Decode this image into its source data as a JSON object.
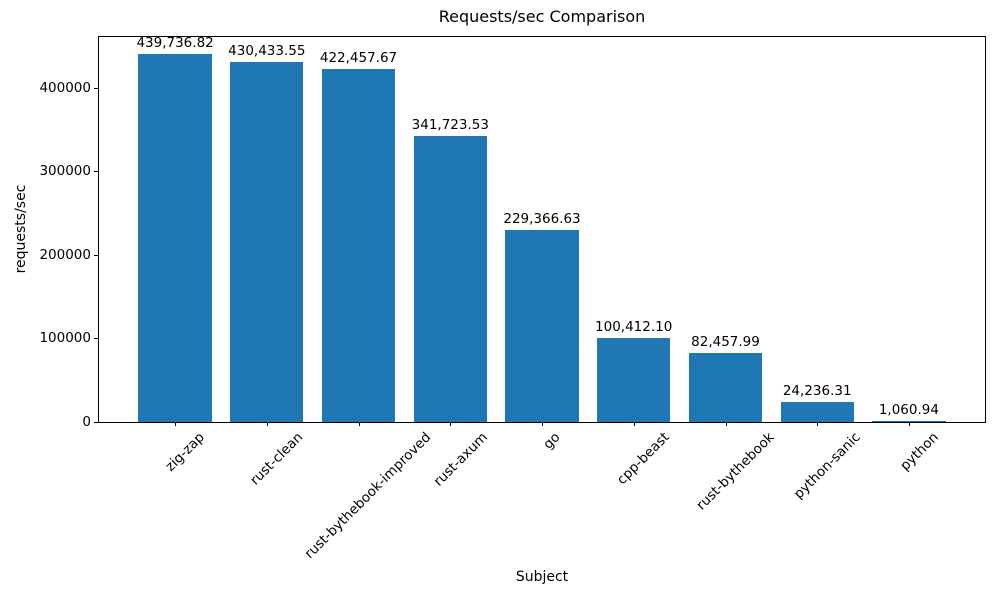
{
  "chart_data": {
    "type": "bar",
    "title": "Requests/sec Comparison",
    "xlabel": "Subject",
    "ylabel": "requests/sec",
    "categories": [
      "zig-zap",
      "rust-clean",
      "rust-bythebook-improved",
      "rust-axum",
      "go",
      "cpp-beast",
      "rust-bythebook",
      "python-sanic",
      "python"
    ],
    "values": [
      439736.82,
      430433.55,
      422457.67,
      341723.53,
      229366.63,
      100412.1,
      82457.99,
      24236.31,
      1060.94
    ],
    "value_labels": [
      "439,736.82",
      "430,433.55",
      "422,457.67",
      "341,723.53",
      "229,366.63",
      "100,412.10",
      "82,457.99",
      "24,236.31",
      "1,060.94"
    ],
    "ylim": [
      0,
      461723.66
    ],
    "yticks": [
      0,
      100000,
      200000,
      300000,
      400000
    ],
    "ytick_labels": [
      "0",
      "100000",
      "200000",
      "300000",
      "400000"
    ],
    "bar_color": "#1f77b4",
    "spine_color": "#000000",
    "x_tick_rotation_deg": 45,
    "grid": false,
    "legend": null
  }
}
